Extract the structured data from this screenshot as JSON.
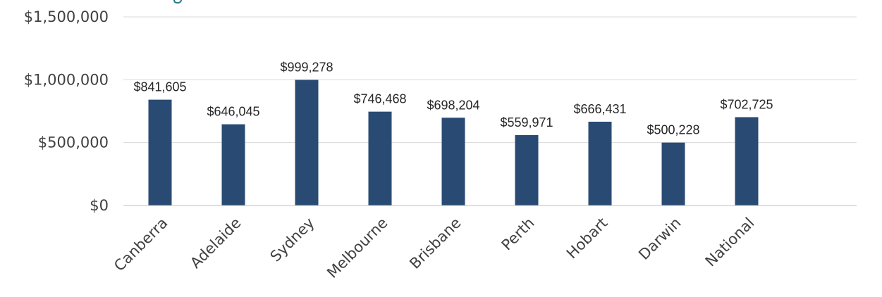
{
  "chart_data": {
    "type": "bar",
    "title": "",
    "xlabel": "",
    "ylabel": "",
    "categories": [
      "Canberra",
      "Adelaide",
      "Sydney",
      "Melbourne",
      "Brisbane",
      "Perth",
      "Hobart",
      "Darwin",
      "National"
    ],
    "values": [
      841605,
      646045,
      999278,
      746468,
      698204,
      559971,
      666431,
      500228,
      702725
    ],
    "data_labels": [
      "$841,605",
      "$646,045",
      "$999,278",
      "$746,468",
      "$698,204",
      "$559,971",
      "$666,431",
      "$500,228",
      "$702,725"
    ],
    "ylim": [
      0,
      1500000
    ],
    "yticks": [
      0,
      500000,
      1000000,
      1500000
    ],
    "ytick_labels": [
      "$0",
      "$500,000",
      "$1,000,000",
      "$1,500,000"
    ],
    "grid": true,
    "legend": "none",
    "colors": {
      "bar": "#294b73",
      "accent_fragment": "#2a7b8c"
    }
  }
}
